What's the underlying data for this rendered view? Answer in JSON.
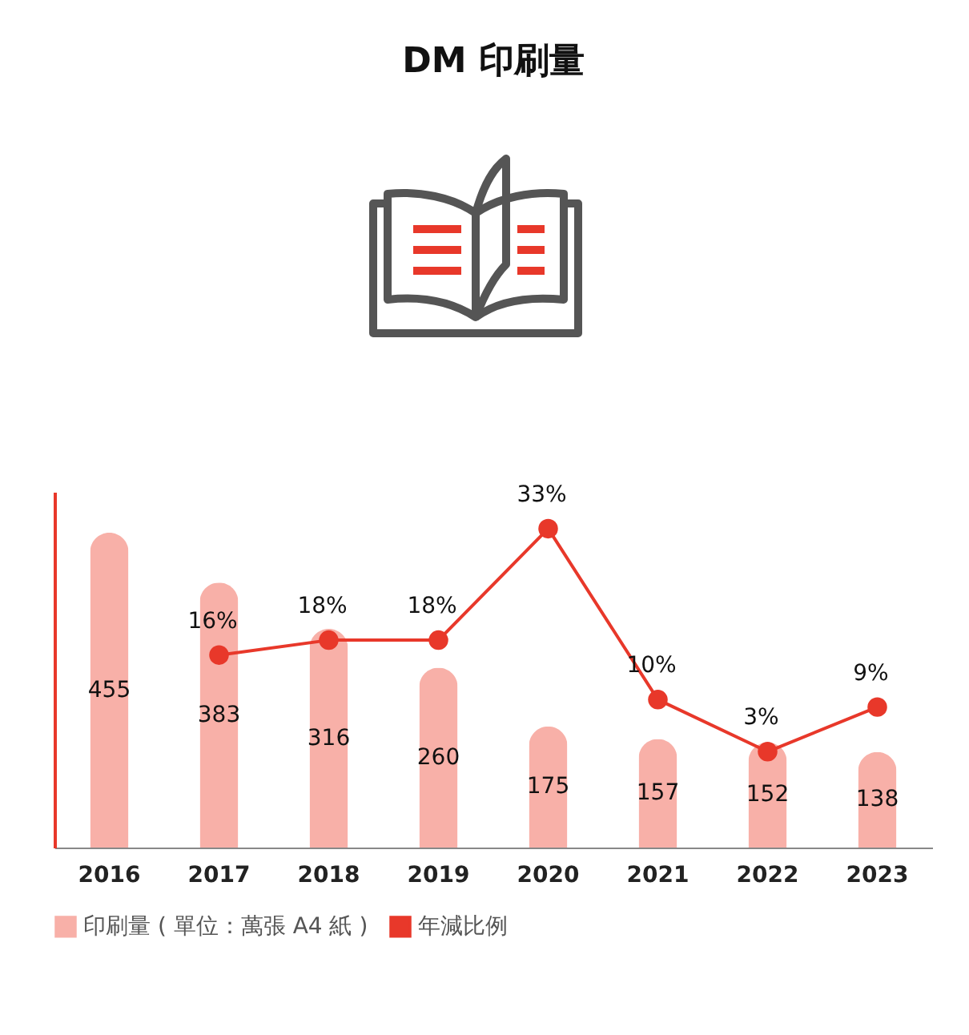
{
  "chart_data": {
    "type": "bar",
    "title": "DM 印刷量",
    "categories": [
      "2016",
      "2017",
      "2018",
      "2019",
      "2020",
      "2021",
      "2022",
      "2023"
    ],
    "series": [
      {
        "name": "印刷量 ( 單位：萬張 A4 紙 )",
        "color": "#f8b0a8",
        "values": [
          455,
          383,
          316,
          260,
          175,
          157,
          152,
          138
        ]
      },
      {
        "name": "年減比例",
        "type": "line",
        "axis": "y2",
        "color": "#e8382a",
        "values": [
          null,
          16,
          18,
          18,
          33,
          10,
          3,
          9
        ],
        "value_labels": [
          null,
          "16%",
          "18%",
          "18%",
          "33%",
          "10%",
          "3%",
          "9%"
        ]
      }
    ],
    "data_labels": true,
    "legend": "bottom",
    "marker": "circle",
    "grid": false
  }
}
